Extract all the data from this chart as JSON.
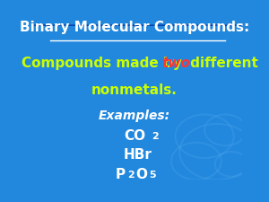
{
  "title": "Binary Molecular Compounds:",
  "title_color": "#ffffff",
  "title_fontsize": 11,
  "line1_text1": "Compounds made by ",
  "line1_text2": "two",
  "line1_text3": " different",
  "line1_color1": "#ccff00",
  "line1_color2": "#ff3333",
  "line2": "nonmetals.",
  "line2_color": "#ccff00",
  "line_fontsize": 11,
  "examples_label": "Examples:",
  "examples_color": "#ffffff",
  "examples_fontsize": 10,
  "compounds_color": "#ffffff",
  "compounds_fontsize": 11,
  "sub_fontsize": 8,
  "bg_color_top": "#2288dd",
  "bg_color_bottom": "#0044aa",
  "swirl_color": "#55aaee",
  "swirl_alpha": 0.25
}
